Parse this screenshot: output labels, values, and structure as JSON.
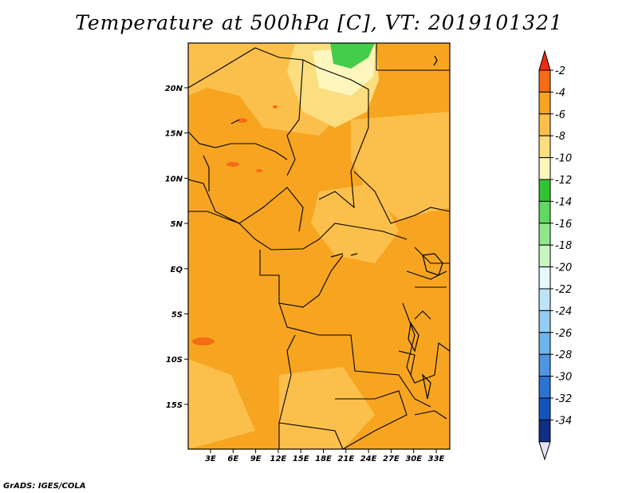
{
  "title": "Temperature at 500hPa [C], VT: 2019101321",
  "credit": "GrADS: IGES/COLA",
  "map": {
    "lat_labels": [
      "20N",
      "15N",
      "10N",
      "5N",
      "EQ",
      "5S",
      "10S",
      "15S"
    ],
    "lon_labels": [
      "3E",
      "6E",
      "9E",
      "12E",
      "15E",
      "18E",
      "21E",
      "24E",
      "27E",
      "30E",
      "33E"
    ],
    "shading": {
      "dominant": "#f7a520",
      "warm_patches": "#f46d14",
      "cool_north": "#fbe7a3",
      "green_patch": "#45cc4a"
    }
  },
  "colorbar": {
    "labels": [
      "-2",
      "-4",
      "-6",
      "-8",
      "-10",
      "-12",
      "-14",
      "-16",
      "-18",
      "-20",
      "-22",
      "-24",
      "-26",
      "-28",
      "-30",
      "-32",
      "-34"
    ],
    "colors": [
      "#ef2b10",
      "#f46d14",
      "#f7a520",
      "#fbc04c",
      "#fbde80",
      "#fdf7be",
      "#32c332",
      "#60d861",
      "#92e78e",
      "#c6f5c2",
      "#e6f8fc",
      "#bde3f7",
      "#94cdf2",
      "#6fb5ea",
      "#4d96e1",
      "#2c72d2",
      "#1654bb",
      "#0f2f84",
      "#e4e3f2"
    ]
  }
}
